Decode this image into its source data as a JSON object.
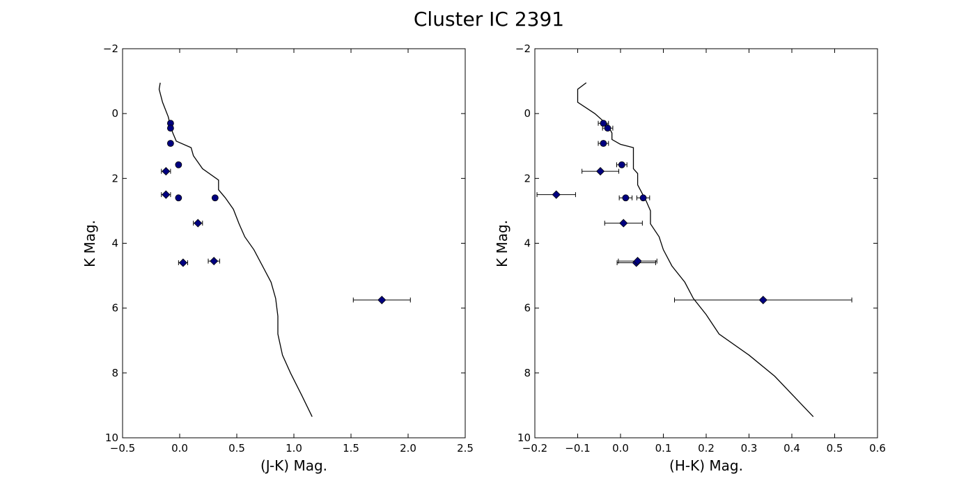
{
  "figure": {
    "title": "Cluster IC 2391"
  },
  "colors": {
    "marker": "#000080",
    "marker_edge": "#000000",
    "line": "#000000"
  },
  "chart_data": [
    {
      "type": "scatter",
      "xlabel": "(J-K) Mag.",
      "ylabel": "K Mag.",
      "xlim": [
        -0.5,
        2.5
      ],
      "ylim": [
        10,
        -2
      ],
      "y_inverted": true,
      "grid": false,
      "x_ticks": [
        "−0.5",
        "0.0",
        "0.5",
        "1.0",
        "1.5",
        "2.0",
        "2.5"
      ],
      "y_ticks": [
        "−2",
        "0",
        "2",
        "4",
        "6",
        "8",
        "10"
      ],
      "series": [
        {
          "kind": "line",
          "points": [
            [
              -0.17,
              -0.95
            ],
            [
              -0.18,
              -0.75
            ],
            [
              -0.15,
              -0.35
            ],
            [
              -0.1,
              0.1
            ],
            [
              -0.08,
              0.4
            ],
            [
              -0.06,
              0.6
            ],
            [
              -0.03,
              0.85
            ],
            [
              0.1,
              1.05
            ],
            [
              0.12,
              1.3
            ],
            [
              0.2,
              1.7
            ],
            [
              0.34,
              2.05
            ],
            [
              0.34,
              2.35
            ],
            [
              0.4,
              2.6
            ],
            [
              0.47,
              2.95
            ],
            [
              0.52,
              3.4
            ],
            [
              0.57,
              3.8
            ],
            [
              0.65,
              4.2
            ],
            [
              0.8,
              5.2
            ],
            [
              0.84,
              5.7
            ],
            [
              0.86,
              6.25
            ],
            [
              0.86,
              6.8
            ],
            [
              0.9,
              7.45
            ],
            [
              0.97,
              8.0
            ],
            [
              1.07,
              8.7
            ],
            [
              1.16,
              9.35
            ]
          ]
        },
        {
          "kind": "scatter",
          "marker": "circle",
          "points": [
            {
              "x": -0.08,
              "y": 0.3,
              "xerr": 0.0
            },
            {
              "x": -0.08,
              "y": 0.45,
              "xerr": 0.0
            },
            {
              "x": -0.08,
              "y": 0.92,
              "xerr": 0.0
            },
            {
              "x": -0.01,
              "y": 1.58,
              "xerr": 0.0
            },
            {
              "x": -0.01,
              "y": 2.6,
              "xerr": 0.0
            },
            {
              "x": 0.31,
              "y": 2.6,
              "xerr": 0.0
            }
          ]
        },
        {
          "kind": "scatter",
          "marker": "diamond",
          "points": [
            {
              "x": -0.12,
              "y": 1.78,
              "xerr": 0.04
            },
            {
              "x": -0.12,
              "y": 2.5,
              "xerr": 0.04
            },
            {
              "x": 0.16,
              "y": 3.38,
              "xerr": 0.04
            },
            {
              "x": 0.03,
              "y": 4.6,
              "xerr": 0.04
            },
            {
              "x": 0.3,
              "y": 4.55,
              "xerr": 0.05
            },
            {
              "x": 1.77,
              "y": 5.75,
              "xerr": 0.25
            }
          ]
        }
      ]
    },
    {
      "type": "scatter",
      "xlabel": "(H-K) Mag.",
      "ylabel": "K Mag.",
      "xlim": [
        -0.2,
        0.6
      ],
      "ylim": [
        10,
        -2
      ],
      "y_inverted": true,
      "grid": false,
      "x_ticks": [
        "−0.2",
        "−0.1",
        "0.0",
        "0.1",
        "0.2",
        "0.3",
        "0.4",
        "0.5",
        "0.6"
      ],
      "y_ticks": [
        "−2",
        "0",
        "2",
        "4",
        "6",
        "8",
        "10"
      ],
      "series": [
        {
          "kind": "line",
          "points": [
            [
              -0.08,
              -0.95
            ],
            [
              -0.1,
              -0.75
            ],
            [
              -0.1,
              -0.35
            ],
            [
              -0.06,
              0.0
            ],
            [
              -0.03,
              0.35
            ],
            [
              -0.02,
              0.6
            ],
            [
              -0.02,
              0.8
            ],
            [
              0.0,
              0.95
            ],
            [
              0.03,
              1.05
            ],
            [
              0.03,
              1.7
            ],
            [
              0.04,
              1.85
            ],
            [
              0.04,
              2.2
            ],
            [
              0.06,
              2.7
            ],
            [
              0.07,
              3.0
            ],
            [
              0.07,
              3.4
            ],
            [
              0.09,
              3.8
            ],
            [
              0.1,
              4.2
            ],
            [
              0.12,
              4.7
            ],
            [
              0.15,
              5.2
            ],
            [
              0.17,
              5.7
            ],
            [
              0.2,
              6.2
            ],
            [
              0.23,
              6.8
            ],
            [
              0.3,
              7.45
            ],
            [
              0.36,
              8.1
            ],
            [
              0.45,
              9.35
            ]
          ]
        },
        {
          "kind": "scatter",
          "marker": "circle",
          "points": [
            {
              "x": -0.04,
              "y": 0.3,
              "xerr": 0.012
            },
            {
              "x": -0.03,
              "y": 0.45,
              "xerr": 0.012
            },
            {
              "x": -0.04,
              "y": 0.92,
              "xerr": 0.012
            },
            {
              "x": 0.003,
              "y": 1.58,
              "xerr": 0.012
            },
            {
              "x": 0.012,
              "y": 2.6,
              "xerr": 0.015
            },
            {
              "x": 0.053,
              "y": 2.6,
              "xerr": 0.015
            }
          ]
        },
        {
          "kind": "scatter",
          "marker": "diamond",
          "points": [
            {
              "x": -0.047,
              "y": 1.78,
              "xerr": 0.043
            },
            {
              "x": -0.15,
              "y": 2.5,
              "xerr": 0.045
            },
            {
              "x": 0.007,
              "y": 3.38,
              "xerr": 0.044
            },
            {
              "x": 0.037,
              "y": 4.6,
              "xerr": 0.045
            },
            {
              "x": 0.04,
              "y": 4.55,
              "xerr": 0.045
            },
            {
              "x": 0.333,
              "y": 5.75,
              "xerr": 0.207
            }
          ]
        }
      ]
    }
  ]
}
